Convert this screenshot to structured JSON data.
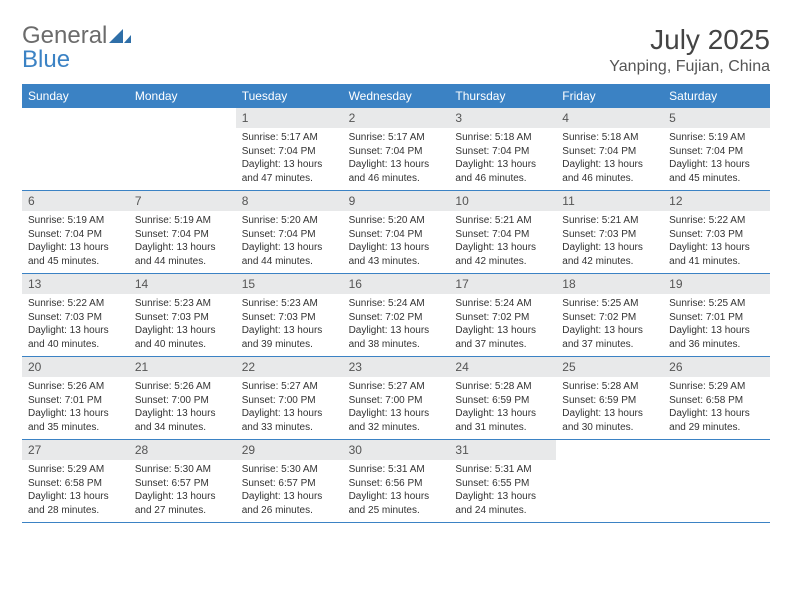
{
  "brand": {
    "word1": "General",
    "word2": "Blue"
  },
  "title": "July 2025",
  "location": "Yanping, Fujian, China",
  "colors": {
    "header_bg": "#3b82c4",
    "header_text": "#ffffff",
    "daynum_bg": "#e8e9ea",
    "body_text": "#333333",
    "divider": "#3b82c4",
    "page_bg": "#ffffff"
  },
  "weekdays": [
    "Sunday",
    "Monday",
    "Tuesday",
    "Wednesday",
    "Thursday",
    "Friday",
    "Saturday"
  ],
  "weeks": [
    [
      {
        "empty": true
      },
      {
        "empty": true
      },
      {
        "n": "1",
        "sr": "5:17 AM",
        "ss": "7:04 PM",
        "dl": "13 hours and 47 minutes."
      },
      {
        "n": "2",
        "sr": "5:17 AM",
        "ss": "7:04 PM",
        "dl": "13 hours and 46 minutes."
      },
      {
        "n": "3",
        "sr": "5:18 AM",
        "ss": "7:04 PM",
        "dl": "13 hours and 46 minutes."
      },
      {
        "n": "4",
        "sr": "5:18 AM",
        "ss": "7:04 PM",
        "dl": "13 hours and 46 minutes."
      },
      {
        "n": "5",
        "sr": "5:19 AM",
        "ss": "7:04 PM",
        "dl": "13 hours and 45 minutes."
      }
    ],
    [
      {
        "n": "6",
        "sr": "5:19 AM",
        "ss": "7:04 PM",
        "dl": "13 hours and 45 minutes."
      },
      {
        "n": "7",
        "sr": "5:19 AM",
        "ss": "7:04 PM",
        "dl": "13 hours and 44 minutes."
      },
      {
        "n": "8",
        "sr": "5:20 AM",
        "ss": "7:04 PM",
        "dl": "13 hours and 44 minutes."
      },
      {
        "n": "9",
        "sr": "5:20 AM",
        "ss": "7:04 PM",
        "dl": "13 hours and 43 minutes."
      },
      {
        "n": "10",
        "sr": "5:21 AM",
        "ss": "7:04 PM",
        "dl": "13 hours and 42 minutes."
      },
      {
        "n": "11",
        "sr": "5:21 AM",
        "ss": "7:03 PM",
        "dl": "13 hours and 42 minutes."
      },
      {
        "n": "12",
        "sr": "5:22 AM",
        "ss": "7:03 PM",
        "dl": "13 hours and 41 minutes."
      }
    ],
    [
      {
        "n": "13",
        "sr": "5:22 AM",
        "ss": "7:03 PM",
        "dl": "13 hours and 40 minutes."
      },
      {
        "n": "14",
        "sr": "5:23 AM",
        "ss": "7:03 PM",
        "dl": "13 hours and 40 minutes."
      },
      {
        "n": "15",
        "sr": "5:23 AM",
        "ss": "7:03 PM",
        "dl": "13 hours and 39 minutes."
      },
      {
        "n": "16",
        "sr": "5:24 AM",
        "ss": "7:02 PM",
        "dl": "13 hours and 38 minutes."
      },
      {
        "n": "17",
        "sr": "5:24 AM",
        "ss": "7:02 PM",
        "dl": "13 hours and 37 minutes."
      },
      {
        "n": "18",
        "sr": "5:25 AM",
        "ss": "7:02 PM",
        "dl": "13 hours and 37 minutes."
      },
      {
        "n": "19",
        "sr": "5:25 AM",
        "ss": "7:01 PM",
        "dl": "13 hours and 36 minutes."
      }
    ],
    [
      {
        "n": "20",
        "sr": "5:26 AM",
        "ss": "7:01 PM",
        "dl": "13 hours and 35 minutes."
      },
      {
        "n": "21",
        "sr": "5:26 AM",
        "ss": "7:00 PM",
        "dl": "13 hours and 34 minutes."
      },
      {
        "n": "22",
        "sr": "5:27 AM",
        "ss": "7:00 PM",
        "dl": "13 hours and 33 minutes."
      },
      {
        "n": "23",
        "sr": "5:27 AM",
        "ss": "7:00 PM",
        "dl": "13 hours and 32 minutes."
      },
      {
        "n": "24",
        "sr": "5:28 AM",
        "ss": "6:59 PM",
        "dl": "13 hours and 31 minutes."
      },
      {
        "n": "25",
        "sr": "5:28 AM",
        "ss": "6:59 PM",
        "dl": "13 hours and 30 minutes."
      },
      {
        "n": "26",
        "sr": "5:29 AM",
        "ss": "6:58 PM",
        "dl": "13 hours and 29 minutes."
      }
    ],
    [
      {
        "n": "27",
        "sr": "5:29 AM",
        "ss": "6:58 PM",
        "dl": "13 hours and 28 minutes."
      },
      {
        "n": "28",
        "sr": "5:30 AM",
        "ss": "6:57 PM",
        "dl": "13 hours and 27 minutes."
      },
      {
        "n": "29",
        "sr": "5:30 AM",
        "ss": "6:57 PM",
        "dl": "13 hours and 26 minutes."
      },
      {
        "n": "30",
        "sr": "5:31 AM",
        "ss": "6:56 PM",
        "dl": "13 hours and 25 minutes."
      },
      {
        "n": "31",
        "sr": "5:31 AM",
        "ss": "6:55 PM",
        "dl": "13 hours and 24 minutes."
      },
      {
        "empty": true
      },
      {
        "empty": true
      }
    ]
  ],
  "labels": {
    "sunrise": "Sunrise:",
    "sunset": "Sunset:",
    "daylight": "Daylight:"
  }
}
